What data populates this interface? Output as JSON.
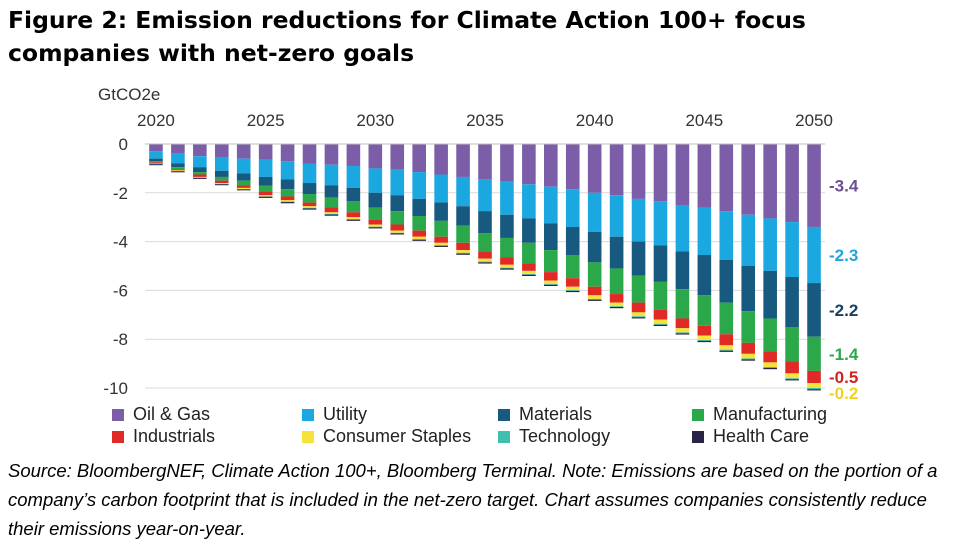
{
  "title": "Figure 2: Emission reductions for Climate Action 100+ focus companies with net-zero goals",
  "source_note": "Source: BloombergNEF, Climate Action 100+, Bloomberg Terminal. Note: Emissions are based on the portion of a company’s carbon footprint that is included in the net-zero target. Chart assumes companies consistently reduce their emissions year-on-year.",
  "chart_data": {
    "type": "bar",
    "stacked": true,
    "ylabel": "GtCO2e",
    "ylim": [
      -10,
      0
    ],
    "yticks": [
      "0",
      "-2",
      "-4",
      "-6",
      "-8",
      "-10"
    ],
    "ytick_values": [
      0,
      -2,
      -4,
      -6,
      -8,
      -10
    ],
    "grid": true,
    "legend_position": "bottom",
    "x_axis_position": "top",
    "xtick_labels": [
      "2020",
      "2025",
      "2030",
      "2035",
      "2040",
      "2045",
      "2050"
    ],
    "categories": [
      "2020",
      "2021",
      "2022",
      "2023",
      "2024",
      "2025",
      "2026",
      "2027",
      "2028",
      "2029",
      "2030",
      "2031",
      "2032",
      "2033",
      "2034",
      "2035",
      "2036",
      "2037",
      "2038",
      "2039",
      "2040",
      "2041",
      "2042",
      "2043",
      "2044",
      "2045",
      "2046",
      "2047",
      "2048",
      "2049",
      "2050"
    ],
    "series": [
      {
        "name": "Oil & Gas",
        "color": "#7b5ea7",
        "values": [
          -0.3,
          -0.4,
          -0.5,
          -0.55,
          -0.6,
          -0.65,
          -0.7,
          -0.8,
          -0.85,
          -0.9,
          -1.0,
          -1.05,
          -1.15,
          -1.25,
          -1.35,
          -1.45,
          -1.55,
          -1.65,
          -1.75,
          -1.85,
          -2.0,
          -2.1,
          -2.25,
          -2.35,
          -2.5,
          -2.6,
          -2.75,
          -2.9,
          -3.05,
          -3.2,
          -3.4
        ]
      },
      {
        "name": "Utility",
        "color": "#1ba7e0",
        "values": [
          -0.3,
          -0.4,
          -0.45,
          -0.55,
          -0.6,
          -0.7,
          -0.75,
          -0.8,
          -0.85,
          -0.9,
          -1.0,
          -1.05,
          -1.1,
          -1.15,
          -1.2,
          -1.3,
          -1.35,
          -1.4,
          -1.5,
          -1.55,
          -1.6,
          -1.7,
          -1.75,
          -1.8,
          -1.9,
          -1.95,
          -2.0,
          -2.1,
          -2.15,
          -2.25,
          -2.3
        ]
      },
      {
        "name": "Materials",
        "color": "#17597f",
        "values": [
          -0.1,
          -0.15,
          -0.2,
          -0.25,
          -0.3,
          -0.35,
          -0.4,
          -0.45,
          -0.5,
          -0.55,
          -0.6,
          -0.65,
          -0.7,
          -0.75,
          -0.8,
          -0.9,
          -0.95,
          -1.0,
          -1.1,
          -1.15,
          -1.25,
          -1.3,
          -1.4,
          -1.5,
          -1.55,
          -1.65,
          -1.75,
          -1.85,
          -1.95,
          -2.05,
          -2.2
        ]
      },
      {
        "name": "Manufacturing",
        "color": "#2aa84a",
        "values": [
          -0.05,
          -0.08,
          -0.1,
          -0.15,
          -0.2,
          -0.25,
          -0.3,
          -0.35,
          -0.4,
          -0.45,
          -0.5,
          -0.55,
          -0.6,
          -0.65,
          -0.7,
          -0.75,
          -0.8,
          -0.85,
          -0.9,
          -0.95,
          -1.0,
          -1.05,
          -1.1,
          -1.15,
          -1.2,
          -1.25,
          -1.3,
          -1.3,
          -1.35,
          -1.4,
          -1.4
        ]
      },
      {
        "name": "Industrials",
        "color": "#e02a26",
        "values": [
          -0.05,
          -0.05,
          -0.1,
          -0.1,
          -0.1,
          -0.15,
          -0.15,
          -0.15,
          -0.2,
          -0.2,
          -0.2,
          -0.25,
          -0.25,
          -0.25,
          -0.3,
          -0.3,
          -0.3,
          -0.3,
          -0.35,
          -0.35,
          -0.35,
          -0.35,
          -0.4,
          -0.4,
          -0.4,
          -0.4,
          -0.45,
          -0.45,
          -0.45,
          -0.5,
          -0.5
        ]
      },
      {
        "name": "Consumer Staples",
        "color": "#f5e23a",
        "values": [
          -0.02,
          -0.03,
          -0.03,
          -0.04,
          -0.05,
          -0.05,
          -0.06,
          -0.07,
          -0.07,
          -0.08,
          -0.09,
          -0.09,
          -0.1,
          -0.1,
          -0.11,
          -0.12,
          -0.12,
          -0.13,
          -0.14,
          -0.14,
          -0.15,
          -0.15,
          -0.16,
          -0.17,
          -0.17,
          -0.18,
          -0.18,
          -0.19,
          -0.19,
          -0.2,
          -0.2
        ]
      },
      {
        "name": "Technology",
        "color": "#3fbfad",
        "values": [
          -0.01,
          -0.01,
          -0.01,
          -0.01,
          -0.01,
          -0.01,
          -0.02,
          -0.02,
          -0.02,
          -0.02,
          -0.02,
          -0.02,
          -0.02,
          -0.02,
          -0.03,
          -0.03,
          -0.03,
          -0.03,
          -0.03,
          -0.03,
          -0.03,
          -0.03,
          -0.04,
          -0.04,
          -0.04,
          -0.04,
          -0.04,
          -0.04,
          -0.04,
          -0.04,
          -0.05
        ]
      },
      {
        "name": "Health Care",
        "color": "#2b2346",
        "values": [
          -0.04,
          -0.04,
          -0.04,
          -0.04,
          -0.04,
          -0.05,
          -0.05,
          -0.05,
          -0.05,
          -0.05,
          -0.05,
          -0.05,
          -0.05,
          -0.05,
          -0.05,
          -0.05,
          -0.05,
          -0.05,
          -0.05,
          -0.05,
          -0.05,
          -0.05,
          -0.05,
          -0.05,
          -0.05,
          -0.05,
          -0.05,
          -0.05,
          -0.05,
          -0.05,
          -0.05
        ]
      }
    ],
    "annotations": [
      {
        "text": "-3.4",
        "series": "Oil & Gas",
        "color": "#6a4f96"
      },
      {
        "text": "-2.3",
        "series": "Utility",
        "color": "#1ba7e0"
      },
      {
        "text": "-2.2",
        "series": "Materials",
        "color": "#17405f"
      },
      {
        "text": "-1.4",
        "series": "Manufacturing",
        "color": "#2aa84a"
      },
      {
        "text": "-0.5",
        "series": "Industrials",
        "color": "#d0231f"
      },
      {
        "text": "-0.2",
        "series": "Consumer Staples",
        "color": "#f2d21c"
      }
    ]
  }
}
